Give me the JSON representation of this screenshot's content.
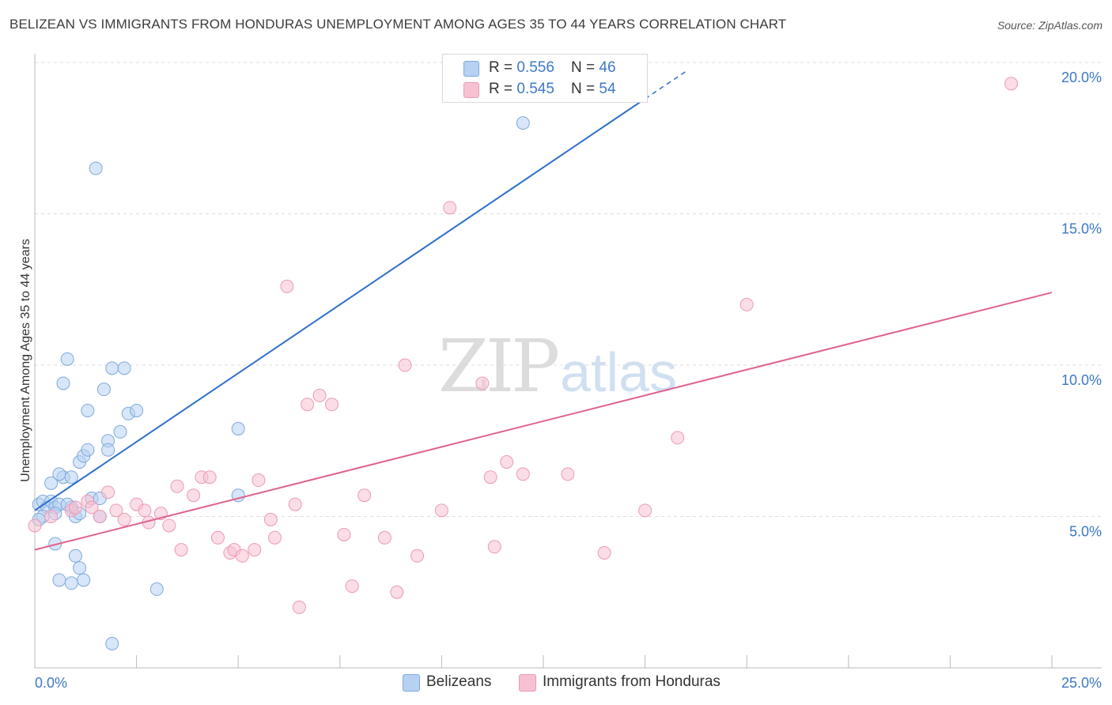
{
  "title": "BELIZEAN VS IMMIGRANTS FROM HONDURAS UNEMPLOYMENT AMONG AGES 35 TO 44 YEARS CORRELATION CHART",
  "source": "Source: ZipAtlas.com",
  "watermark": {
    "zip": "ZIP",
    "atlas": "atlas"
  },
  "legend": {
    "series": [
      {
        "r_label": "R = ",
        "r_value": "0.556",
        "n_label": "N = ",
        "n_value": "46"
      },
      {
        "r_label": "R = ",
        "r_value": "0.545",
        "n_label": "N = ",
        "n_value": "54"
      }
    ]
  },
  "colors": {
    "blue_fill": "#b7d1f3",
    "blue_stroke": "#7fa8da",
    "blue_line": "#2e6fcb",
    "pink_fill": "#f7c1d2",
    "pink_stroke": "#eb9ab5",
    "pink_line": "#e0628f",
    "tick_label": "#3d78c8",
    "grid": "#dddddd"
  },
  "chart_data": {
    "type": "scatter",
    "title": "BELIZEAN VS IMMIGRANTS FROM HONDURAS UNEMPLOYMENT AMONG AGES 35 TO 44 YEARS CORRELATION CHART",
    "xlabel": "",
    "ylabel": "Unemployment Among Ages 35 to 44 years",
    "xlim": [
      0,
      25
    ],
    "ylim": [
      0,
      20
    ],
    "x_tick_labels": {
      "left": "0.0%",
      "right": "25.0%"
    },
    "y_ticks": [
      {
        "value": 5,
        "label": "5.0%"
      },
      {
        "value": 10,
        "label": "10.0%"
      },
      {
        "value": 15,
        "label": "15.0%"
      },
      {
        "value": 20,
        "label": "20.0%"
      }
    ],
    "grid": true,
    "series": [
      {
        "name": "Belizeans",
        "color_key": "blue",
        "R": 0.556,
        "N": 46,
        "trend": {
          "x0": 0.0,
          "y0": 5.2,
          "x1": 15.0,
          "y1": 18.8,
          "dash_to_x": 16.0,
          "dash_to_y": 19.7
        },
        "points": [
          [
            0.1,
            5.4
          ],
          [
            0.2,
            5.5
          ],
          [
            0.3,
            5.3
          ],
          [
            0.2,
            5.0
          ],
          [
            0.4,
            5.5
          ],
          [
            0.5,
            5.3
          ],
          [
            0.6,
            5.4
          ],
          [
            0.4,
            6.1
          ],
          [
            0.5,
            5.1
          ],
          [
            0.7,
            6.3
          ],
          [
            0.9,
            5.3
          ],
          [
            0.8,
            5.4
          ],
          [
            0.9,
            6.3
          ],
          [
            1.0,
            5.0
          ],
          [
            1.1,
            5.1
          ],
          [
            0.6,
            6.4
          ],
          [
            1.1,
            6.8
          ],
          [
            1.2,
            7.0
          ],
          [
            1.3,
            7.2
          ],
          [
            1.4,
            5.6
          ],
          [
            1.6,
            5.6
          ],
          [
            1.8,
            7.5
          ],
          [
            1.8,
            7.2
          ],
          [
            2.1,
            7.8
          ],
          [
            1.3,
            8.5
          ],
          [
            2.3,
            8.4
          ],
          [
            2.5,
            8.5
          ],
          [
            1.7,
            9.2
          ],
          [
            0.7,
            9.4
          ],
          [
            0.8,
            10.2
          ],
          [
            1.9,
            9.9
          ],
          [
            2.2,
            9.9
          ],
          [
            1.5,
            16.5
          ],
          [
            12.0,
            18.0
          ],
          [
            5.0,
            5.7
          ],
          [
            5.0,
            7.9
          ],
          [
            0.5,
            4.1
          ],
          [
            1.0,
            3.7
          ],
          [
            1.1,
            3.3
          ],
          [
            0.6,
            2.9
          ],
          [
            0.9,
            2.8
          ],
          [
            1.2,
            2.9
          ],
          [
            3.0,
            2.6
          ],
          [
            1.9,
            0.8
          ],
          [
            0.1,
            4.9
          ],
          [
            1.6,
            5.0
          ]
        ]
      },
      {
        "name": "Immigrants from Honduras",
        "color_key": "pink",
        "R": 0.545,
        "N": 54,
        "trend": {
          "x0": 0.0,
          "y0": 3.9,
          "x1": 25.0,
          "y1": 12.4
        },
        "points": [
          [
            0.0,
            4.7
          ],
          [
            0.4,
            5.0
          ],
          [
            0.9,
            5.2
          ],
          [
            1.0,
            5.3
          ],
          [
            1.3,
            5.5
          ],
          [
            1.4,
            5.3
          ],
          [
            1.6,
            5.0
          ],
          [
            1.8,
            5.8
          ],
          [
            2.0,
            5.2
          ],
          [
            2.2,
            4.9
          ],
          [
            2.5,
            5.4
          ],
          [
            2.7,
            5.2
          ],
          [
            2.8,
            4.8
          ],
          [
            3.1,
            5.1
          ],
          [
            3.3,
            4.7
          ],
          [
            3.5,
            6.0
          ],
          [
            3.6,
            3.9
          ],
          [
            3.9,
            5.7
          ],
          [
            4.1,
            6.3
          ],
          [
            4.3,
            6.3
          ],
          [
            4.5,
            4.3
          ],
          [
            4.8,
            3.8
          ],
          [
            4.9,
            3.9
          ],
          [
            5.1,
            3.7
          ],
          [
            5.4,
            3.9
          ],
          [
            5.5,
            6.2
          ],
          [
            5.8,
            4.9
          ],
          [
            5.9,
            4.3
          ],
          [
            6.2,
            12.6
          ],
          [
            6.4,
            5.4
          ],
          [
            6.5,
            2.0
          ],
          [
            6.7,
            8.7
          ],
          [
            7.0,
            9.0
          ],
          [
            7.3,
            8.7
          ],
          [
            7.6,
            4.4
          ],
          [
            7.8,
            2.7
          ],
          [
            8.1,
            5.7
          ],
          [
            8.6,
            4.3
          ],
          [
            8.9,
            2.5
          ],
          [
            9.1,
            10.0
          ],
          [
            9.4,
            3.7
          ],
          [
            10.0,
            5.2
          ],
          [
            10.2,
            15.2
          ],
          [
            11.0,
            9.4
          ],
          [
            11.2,
            6.3
          ],
          [
            11.3,
            4.0
          ],
          [
            11.6,
            6.8
          ],
          [
            12.0,
            6.4
          ],
          [
            13.1,
            6.4
          ],
          [
            14.0,
            3.8
          ],
          [
            15.0,
            5.2
          ],
          [
            15.8,
            7.6
          ],
          [
            17.5,
            12.0
          ],
          [
            24.0,
            19.3
          ]
        ]
      }
    ]
  }
}
